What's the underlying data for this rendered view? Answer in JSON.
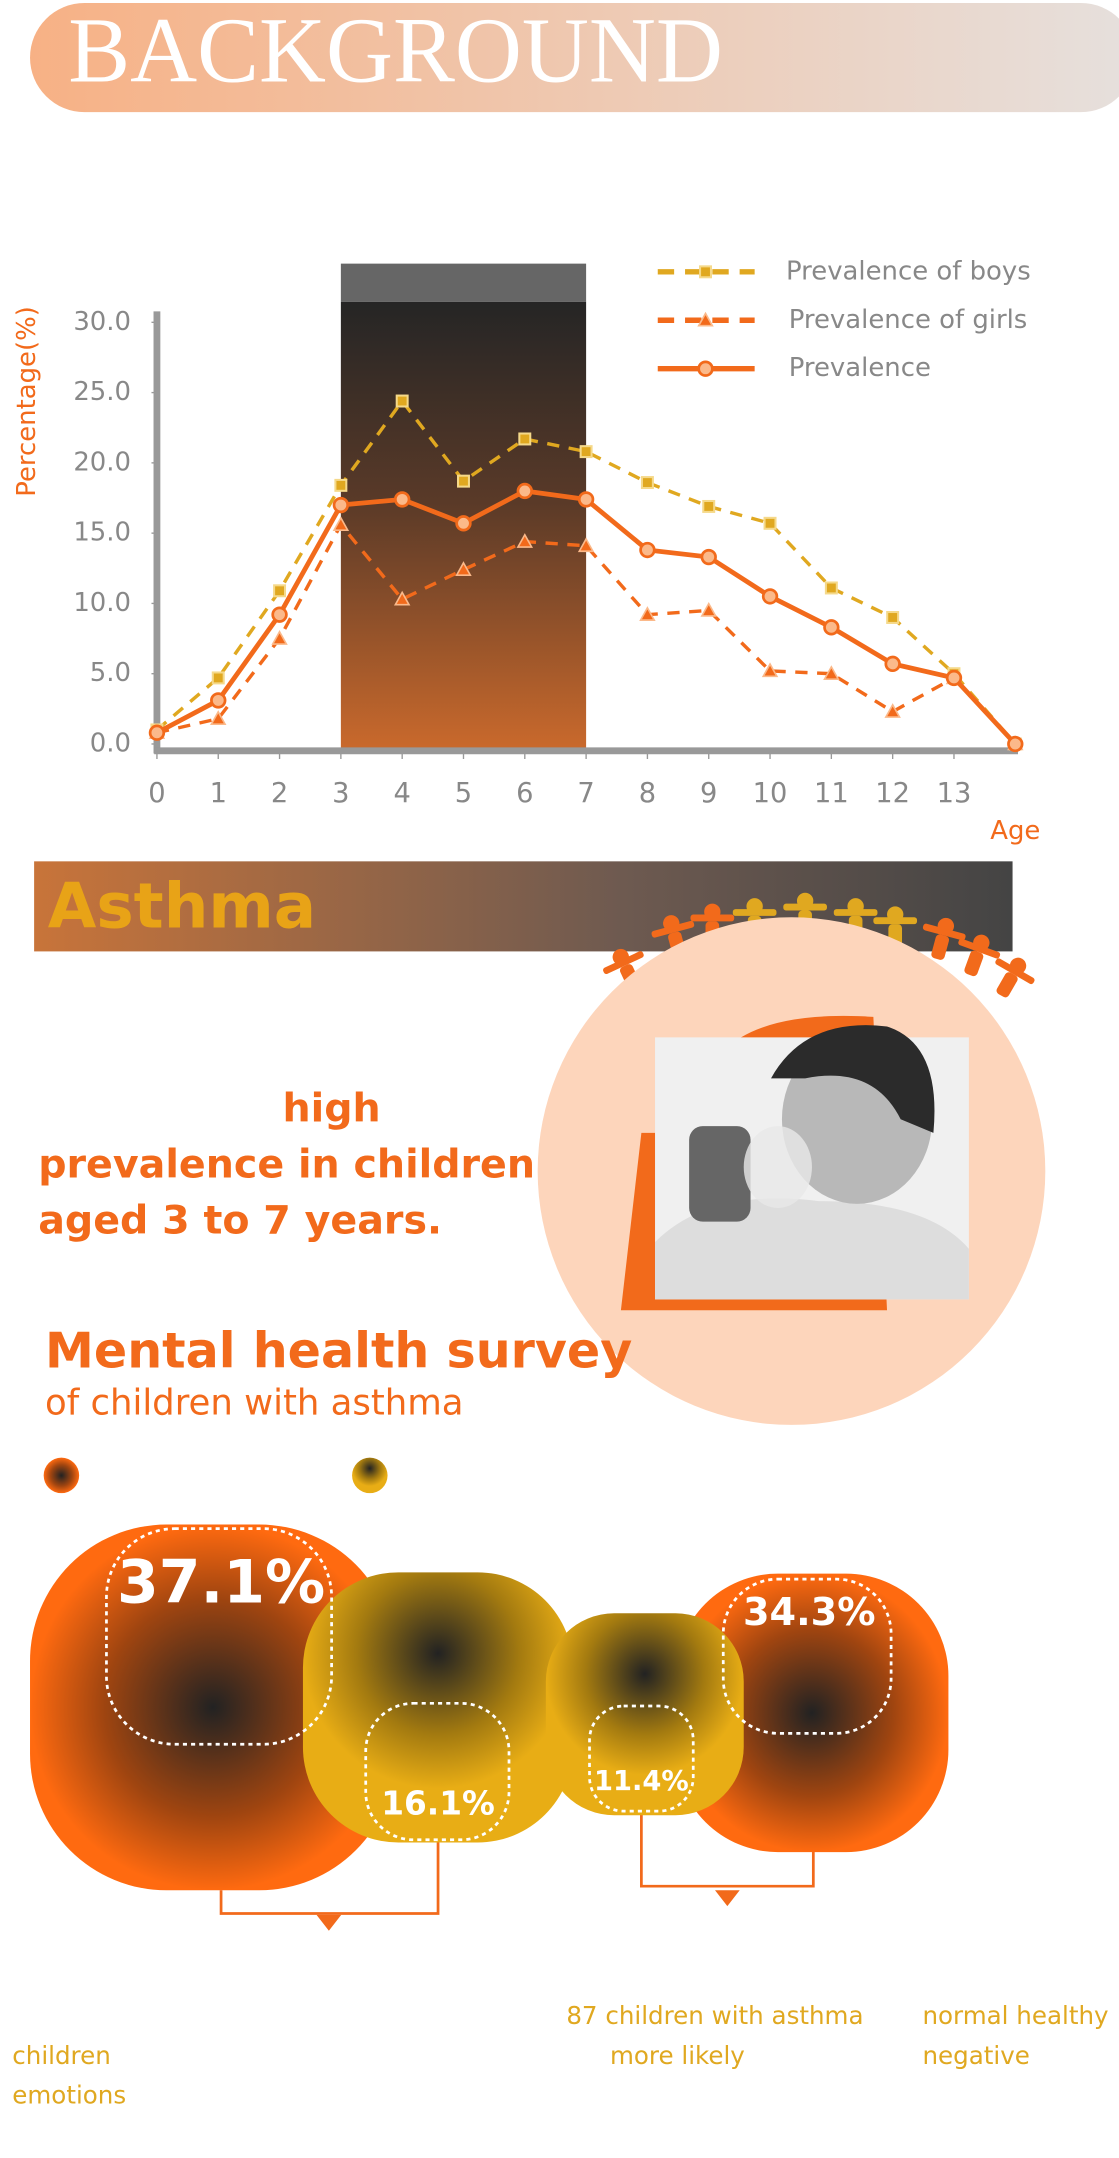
{
  "header": {
    "title": "BACKGROUND"
  },
  "chart_data": {
    "type": "line",
    "ylabel": "Percentage(%)",
    "xlabel": "Age",
    "x": [
      0,
      1,
      2,
      3,
      4,
      5,
      6,
      7,
      8,
      9,
      10,
      11,
      12,
      13,
      14
    ],
    "xlim": [
      0,
      14
    ],
    "xticks": [
      0,
      1,
      2,
      3,
      4,
      5,
      6,
      7,
      8,
      9,
      10,
      11,
      12,
      13
    ],
    "ylim": [
      0,
      30
    ],
    "yticks": [
      {
        "value": 0,
        "label": "0.0"
      },
      {
        "value": 5,
        "label": "5.0"
      },
      {
        "value": 10,
        "label": "10.0"
      },
      {
        "value": 15,
        "label": "15.0"
      },
      {
        "value": 20,
        "label": "20.0"
      },
      {
        "value": 25,
        "label": "25.0"
      },
      {
        "value": 30,
        "label": "30.0"
      }
    ],
    "highlight_range": [
      3,
      7
    ],
    "series": [
      {
        "name": "Prevalence of boys",
        "color": "#e0a820",
        "style": "dashed",
        "marker": "square",
        "values": [
          1.0,
          4.7,
          10.9,
          18.4,
          24.4,
          18.7,
          21.7,
          20.8,
          18.6,
          16.9,
          15.7,
          11.1,
          9.0,
          5.0,
          0
        ]
      },
      {
        "name": "Prevalence of girls",
        "color": "#f26a1b",
        "style": "dashed",
        "marker": "triangle",
        "values": [
          0.8,
          1.8,
          7.5,
          15.6,
          10.3,
          12.4,
          14.4,
          14.1,
          9.2,
          9.5,
          5.2,
          5.0,
          2.3,
          4.7,
          0
        ]
      },
      {
        "name": "Prevalence",
        "color": "#f26a1b",
        "style": "solid",
        "marker": "circle",
        "values": [
          0.8,
          3.1,
          9.2,
          17.0,
          17.4,
          15.7,
          18.0,
          17.4,
          13.8,
          13.3,
          10.5,
          8.3,
          5.7,
          4.7,
          0
        ]
      }
    ]
  },
  "asthma": {
    "title": "Asthma",
    "lines": [
      "high",
      "prevalence in children",
      "aged 3 to 7 years."
    ]
  },
  "survey": {
    "title": "Mental health survey",
    "subtitle": "of children with asthma",
    "stats": [
      "37.1%",
      "16.1%",
      "11.4%",
      "34.3%"
    ],
    "notes": [
      "87 children with asthma",
      "more likely",
      "normal healthy",
      "negative",
      "children",
      "emotions"
    ]
  }
}
